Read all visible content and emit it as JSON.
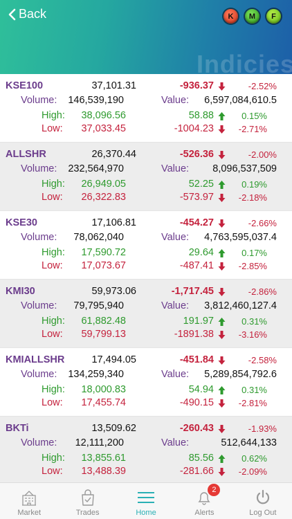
{
  "header": {
    "back_label": "Back",
    "watermark": "Indicies",
    "badges": [
      "K",
      "M",
      "F"
    ]
  },
  "labels": {
    "volume": "Volume:",
    "value": "Value:",
    "high": "High:",
    "low": "Low:"
  },
  "indices": [
    {
      "name": "KSE100",
      "price": "37,101.31",
      "change": "-936.37",
      "change_pct": "-2.52%",
      "volume": "146,539,190",
      "value": "6,597,084,610.5",
      "high": "38,096.56",
      "high_diff": "58.88",
      "high_pct": "0.15%",
      "low": "37,033.45",
      "low_diff": "-1004.23",
      "low_pct": "-2.71%"
    },
    {
      "name": "ALLSHR",
      "price": "26,370.44",
      "change": "-526.36",
      "change_pct": "-2.00%",
      "volume": "232,564,970",
      "value": "8,096,537,509",
      "high": "26,949.05",
      "high_diff": "52.25",
      "high_pct": "0.19%",
      "low": "26,322.83",
      "low_diff": "-573.97",
      "low_pct": "-2.18%"
    },
    {
      "name": "KSE30",
      "price": "17,106.81",
      "change": "-454.27",
      "change_pct": "-2.66%",
      "volume": "78,062,040",
      "value": "4,763,595,037.4",
      "high": "17,590.72",
      "high_diff": "29.64",
      "high_pct": "0.17%",
      "low": "17,073.67",
      "low_diff": "-487.41",
      "low_pct": "-2.85%"
    },
    {
      "name": "KMI30",
      "price": "59,973.06",
      "change": "-1,717.45",
      "change_pct": "-2.86%",
      "volume": "79,795,940",
      "value": "3,812,460,127.4",
      "high": "61,882.48",
      "high_diff": "191.97",
      "high_pct": "0.31%",
      "low": "59,799.13",
      "low_diff": "-1891.38",
      "low_pct": "-3.16%"
    },
    {
      "name": "KMIALLSHR",
      "price": "17,494.05",
      "change": "-451.84",
      "change_pct": "-2.58%",
      "volume": "134,259,340",
      "value": "5,289,854,792.6",
      "high": "18,000.83",
      "high_diff": "54.94",
      "high_pct": "0.31%",
      "low": "17,455.74",
      "low_diff": "-490.15",
      "low_pct": "-2.81%"
    },
    {
      "name": "BKTi",
      "price": "13,509.62",
      "change": "-260.43",
      "change_pct": "-1.93%",
      "volume": "12,111,200",
      "value": "512,644,133",
      "high": "13,855.61",
      "high_diff": "85.56",
      "high_pct": "0.62%",
      "low": "13,488.39",
      "low_diff": "-281.66",
      "low_pct": "-2.09%"
    }
  ],
  "tabs": [
    {
      "label": "Market",
      "icon": "building-icon"
    },
    {
      "label": "Trades",
      "icon": "bag-icon"
    },
    {
      "label": "Home",
      "icon": "menu-icon",
      "active": true
    },
    {
      "label": "Alerts",
      "icon": "bell-icon",
      "badge": "2"
    },
    {
      "label": "Log Out",
      "icon": "power-icon"
    }
  ],
  "colors": {
    "accent": "#2ab0b5",
    "purple": "#6b3c8c",
    "green": "#2e9a2e",
    "red": "#c4223d"
  }
}
